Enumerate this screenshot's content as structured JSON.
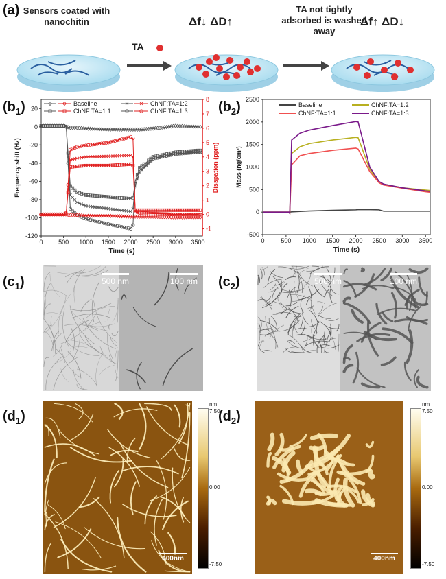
{
  "panel_a": {
    "label": "(a)",
    "left_note": "Sensors coated with nanochitin",
    "arrow_label": "TA",
    "mid_note": "TA not tightly adsorbed is washed away",
    "mid_delta": "Δf↓  ΔD↑",
    "right_delta": "Δf↑  ΔD↓"
  },
  "panel_b1": {
    "label": "b",
    "sub": "1"
  },
  "panel_b2": {
    "label": "b",
    "sub": "2"
  },
  "panel_c1": {
    "label": "c",
    "sub": "1",
    "scale_left": "500 nm",
    "scale_right": "100 nm"
  },
  "panel_c2": {
    "label": "c",
    "sub": "2",
    "scale_left": "500 nm",
    "scale_right": "100 nm"
  },
  "panel_d1": {
    "label": "d",
    "sub": "1",
    "scale": "400nm",
    "cb_unit": "nm",
    "cb_max": "7.50",
    "cb_mid": "0.00",
    "cb_min": "-7.50"
  },
  "panel_d2": {
    "label": "d",
    "sub": "2",
    "scale": "400nm",
    "cb_unit": "nm",
    "cb_max": "7.50",
    "cb_mid": "0.00",
    "cb_min": "-7.50"
  },
  "colors": {
    "frequency": "#555555",
    "dissipation": "#e02020",
    "baseline": "#444444",
    "r11": "#f05050",
    "r12": "#b8b020",
    "r13": "#7a1a8a"
  },
  "chart_data": [
    {
      "type": "line",
      "xlabel": "Time (s)",
      "ylabel": "Frequency shift (Hz)",
      "y2label": "Disspation (ppm)",
      "xlim": [
        0,
        3600
      ],
      "ylim": [
        -120,
        30
      ],
      "y2lim": [
        -1.5,
        8
      ],
      "xticks": [
        0,
        500,
        1000,
        1500,
        2000,
        2500,
        3000,
        3500
      ],
      "yticks": [
        -120,
        -100,
        -80,
        -60,
        -40,
        -20,
        0,
        20
      ],
      "y2ticks": [
        -1,
        0,
        1,
        2,
        3,
        4,
        5,
        6,
        7,
        8
      ],
      "legend": "top",
      "legend_entries": [
        "Baseline",
        "ChNF:TA=1:2",
        "ChNF:TA=1:1",
        "ChNF:TA=1:3"
      ],
      "x": [
        0,
        500,
        560,
        650,
        800,
        1000,
        1500,
        2000,
        2050,
        2100,
        2200,
        2500,
        3000,
        3500
      ],
      "frequency": [
        {
          "name": "Baseline",
          "marker": "diamond",
          "values": [
            1,
            1,
            0,
            -1,
            -1,
            -2,
            -3,
            -3,
            -3,
            -3,
            -3,
            -2,
            1,
            0
          ]
        },
        {
          "name": "ChNF:TA=1:1",
          "marker": "square",
          "values": [
            1,
            1,
            0,
            -65,
            -72,
            -75,
            -77,
            -79,
            -78,
            -60,
            -45,
            -33,
            -28,
            -26
          ]
        },
        {
          "name": "ChNF:TA=1:2",
          "marker": "x",
          "values": [
            1,
            1,
            0,
            -75,
            -83,
            -87,
            -90,
            -93,
            -90,
            -65,
            -50,
            -35,
            -30,
            -28
          ]
        },
        {
          "name": "ChNF:TA=1:3",
          "marker": "circle",
          "values": [
            1,
            1,
            0,
            -90,
            -97,
            -101,
            -107,
            -112,
            -108,
            -60,
            -48,
            -35,
            -30,
            -28
          ]
        }
      ],
      "dissipation": [
        {
          "name": "Baseline",
          "marker": "diamond",
          "values": [
            0,
            0,
            0,
            -0.05,
            -0.05,
            -0.1,
            -0.1,
            -0.15,
            -0.15,
            -0.15,
            -0.15,
            -0.15,
            -0.2,
            -0.2
          ]
        },
        {
          "name": "ChNF:TA=1:1",
          "marker": "square",
          "values": [
            0,
            0,
            0.1,
            3.3,
            3.35,
            3.4,
            3.4,
            3.5,
            3.4,
            0.3,
            0.3,
            0.3,
            0.3,
            0.3
          ]
        },
        {
          "name": "ChNF:TA=1:2",
          "marker": "x",
          "values": [
            0,
            0,
            0.1,
            3.8,
            3.9,
            4.0,
            4.05,
            4.1,
            4.0,
            0.2,
            0.1,
            0.1,
            0.0,
            0.0
          ]
        },
        {
          "name": "ChNF:TA=1:3",
          "marker": "circle",
          "values": [
            0,
            0,
            0.1,
            4.5,
            4.7,
            4.8,
            5.0,
            5.4,
            5.3,
            0.2,
            0.1,
            0.05,
            0.0,
            0.0
          ]
        }
      ]
    },
    {
      "type": "line",
      "xlabel": "Time (s)",
      "ylabel": "Mass (ng/cm²)",
      "xlim": [
        0,
        3600
      ],
      "ylim": [
        -500,
        2500
      ],
      "xticks": [
        0,
        500,
        1000,
        1500,
        2000,
        2500,
        3000,
        3500
      ],
      "yticks": [
        -500,
        0,
        500,
        1000,
        1500,
        2000,
        2500
      ],
      "legend": "top",
      "x": [
        0,
        560,
        580,
        620,
        800,
        1000,
        1500,
        2000,
        2050,
        2300,
        2500,
        2600,
        3000,
        3500,
        3600
      ],
      "series": [
        {
          "name": "Baseline",
          "values": [
            0,
            0,
            0,
            5,
            15,
            25,
            40,
            50,
            55,
            55,
            50,
            20,
            20,
            20,
            20
          ]
        },
        {
          "name": "ChNF:TA=1:2",
          "values": [
            0,
            0,
            -30,
            1300,
            1450,
            1520,
            1600,
            1660,
            1650,
            950,
            670,
            620,
            540,
            490,
            480
          ]
        },
        {
          "name": "ChNF:TA=1:1",
          "values": [
            0,
            0,
            -30,
            1050,
            1250,
            1300,
            1370,
            1420,
            1400,
            900,
            650,
            600,
            530,
            450,
            440
          ]
        },
        {
          "name": "ChNF:TA=1:3",
          "values": [
            0,
            0,
            -30,
            1600,
            1750,
            1820,
            1920,
            2010,
            2000,
            1000,
            680,
            620,
            540,
            470,
            460
          ]
        }
      ]
    }
  ]
}
